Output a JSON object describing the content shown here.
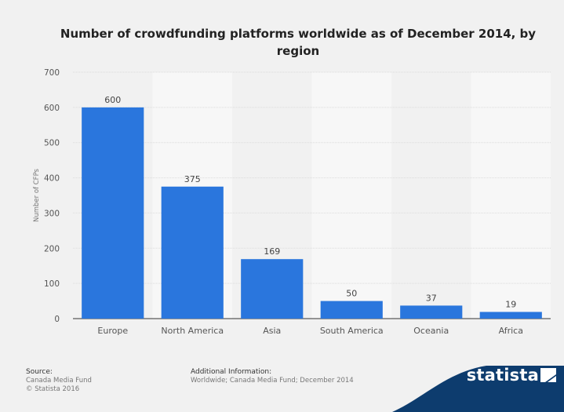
{
  "chart_data": {
    "type": "bar",
    "title": "Number of crowdfunding platforms worldwide as of December 2014, by region",
    "ylabel": "Number of CFPs",
    "xlabel": "",
    "categories": [
      "Europe",
      "North America",
      "Asia",
      "South America",
      "Oceania",
      "Africa"
    ],
    "values": [
      600,
      375,
      169,
      50,
      37,
      19
    ],
    "ylim": [
      0,
      700
    ],
    "yticks": [
      0,
      100,
      200,
      300,
      400,
      500,
      600,
      700
    ],
    "grid": true,
    "bar_color": "#2a76dd"
  },
  "footer": {
    "source_heading": "Source:",
    "source_lines": [
      "Canada Media Fund",
      "© Statista 2016"
    ],
    "info_heading": "Additional Information:",
    "info_text": "Worldwide; Canada Media Fund; December 2014"
  },
  "brand": {
    "name": "statista",
    "logo_icon": "statista-flag-icon",
    "color": "#0d3c6e"
  }
}
